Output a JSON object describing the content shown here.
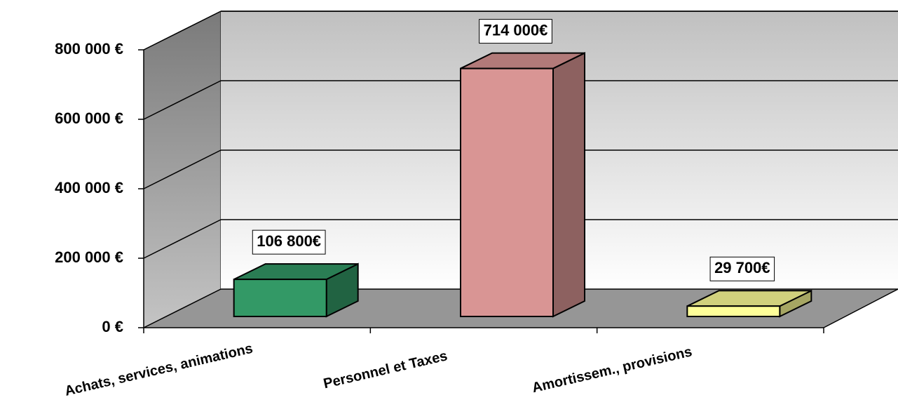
{
  "chart_data": {
    "type": "bar3d",
    "categories": [
      "Achats, services, animations",
      "Personnel et Taxes",
      "Amortissem., provisions"
    ],
    "values": [
      106800,
      714000,
      29700
    ],
    "value_labels": [
      "106 800€",
      "714 000€",
      "29 700€"
    ],
    "colors": [
      "#339966",
      "#d99594",
      "#ffff99"
    ],
    "ylim": [
      0,
      800000
    ],
    "yticks": [
      {
        "value": 0,
        "label": "0 €"
      },
      {
        "value": 200000,
        "label": "200 000 €"
      },
      {
        "value": 400000,
        "label": "400 000 €"
      },
      {
        "value": 600000,
        "label": "600 000 €"
      },
      {
        "value": 800000,
        "label": "800 000 €"
      }
    ],
    "grid": true
  }
}
